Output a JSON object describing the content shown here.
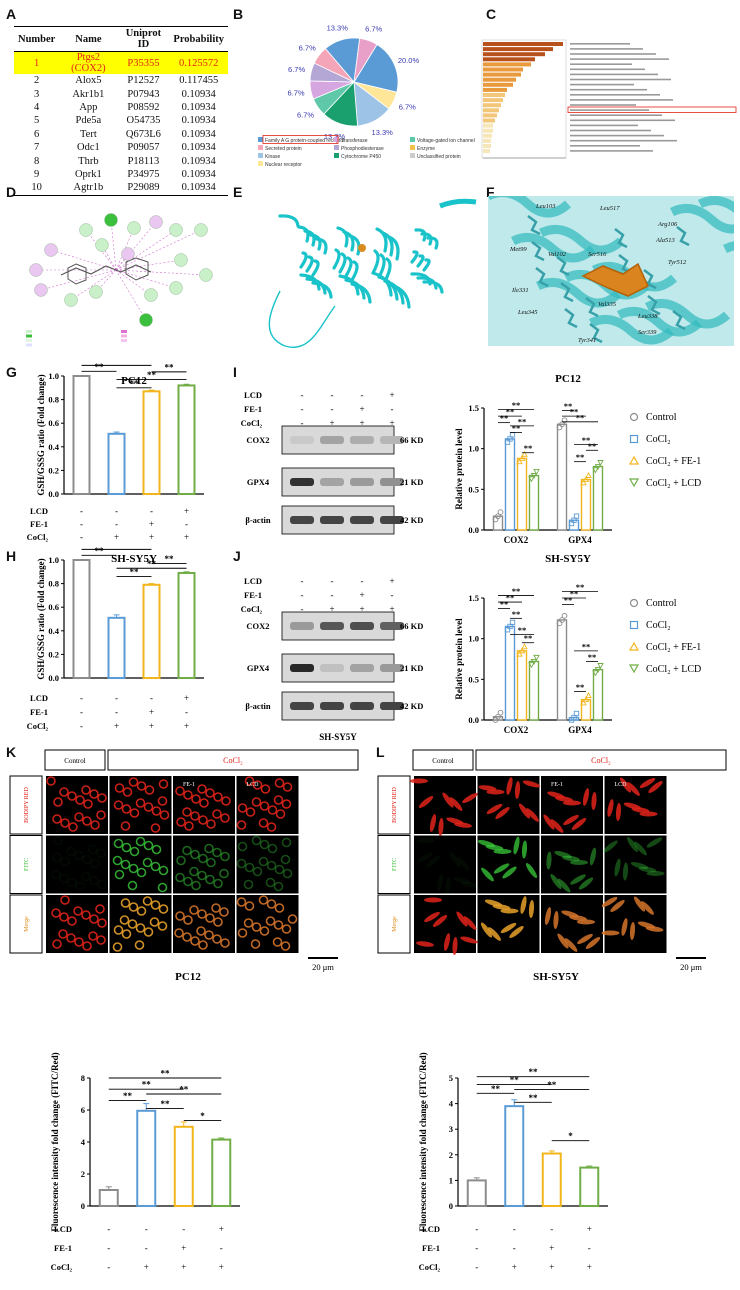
{
  "panels": {
    "A": "A",
    "B": "B",
    "C": "C",
    "D": "D",
    "E": "E",
    "F": "F",
    "G": "G",
    "H": "H",
    "I": "I",
    "J": "J",
    "K": "K",
    "L": "L"
  },
  "table_A": {
    "headers": [
      "Number",
      "Name",
      "Uniprot ID",
      "Probability"
    ],
    "rows": [
      [
        "1",
        "Ptgs2 (COX2)",
        "P35355",
        "0.125572"
      ],
      [
        "2",
        "Alox5",
        "P12527",
        "0.117455"
      ],
      [
        "3",
        "Akr1b1",
        "P07943",
        "0.10934"
      ],
      [
        "4",
        "App",
        "P08592",
        "0.10934"
      ],
      [
        "5",
        "Pde5a",
        "O54735",
        "0.10934"
      ],
      [
        "6",
        "Tert",
        "Q673L6",
        "0.10934"
      ],
      [
        "7",
        "Odc1",
        "P09057",
        "0.10934"
      ],
      [
        "8",
        "Thrb",
        "P18113",
        "0.10934"
      ],
      [
        "9",
        "Oprk1",
        "P34975",
        "0.10934"
      ],
      [
        "10",
        "Agtr1b",
        "P29089",
        "0.10934"
      ]
    ]
  },
  "colors": {
    "control": "#8c8c8c",
    "cocl2": "#5b9bd5",
    "fe1": "#f2b51c",
    "lcd": "#70ad47",
    "highlight": "#ffff00",
    "red": "#e2231a",
    "cyan": "#19c3c9"
  },
  "pie_B": {
    "slices": [
      {
        "pct": "20.0%",
        "value": 20.0,
        "color": "#5b9bd5"
      },
      {
        "pct": "6.7%",
        "value": 6.7,
        "color": "#ffe699"
      },
      {
        "pct": "13.3%",
        "value": 13.3,
        "color": "#9dc3e6"
      },
      {
        "pct": "13.3%",
        "value": 13.3,
        "color": "#1a9f6e"
      },
      {
        "pct": "6.7%",
        "value": 6.7,
        "color": "#5fc8a8"
      },
      {
        "pct": "6.7%",
        "value": 6.7,
        "color": "#d6a6e0"
      },
      {
        "pct": "6.7%",
        "value": 6.7,
        "color": "#b4a7d6"
      },
      {
        "pct": "6.7%",
        "value": 6.7,
        "color": "#f4a6b8"
      },
      {
        "pct": "13.3%",
        "value": 13.3,
        "color": "#5b9bd5"
      },
      {
        "pct": "6.7%",
        "value": 6.7,
        "color": "#e8a0c8"
      }
    ],
    "legend": [
      "Family A G protein-coupled receptor",
      "Transferase",
      "Voltage-gated ion channel",
      "Secreted protein",
      "Phosphodiesterase",
      "Enzyme",
      "Kinase",
      "Cytochrome P450",
      "Unclassified protein",
      "Nuclear receptor"
    ]
  },
  "labels": {
    "pc12": "PC12",
    "shsy5y": "SH-SY5Y",
    "lcd": "LCD",
    "fe1": "FE-1",
    "cocl2": "CoCl₂",
    "gsh_ylabel": "GSH/GSSG ratio (Fold change)",
    "rel_ylabel": "Relative protein level",
    "fluor_ylabel": "Fluorescence intensity fold change (FITC/Red)",
    "cox2": "COX2",
    "gpx4": "GPX4",
    "bactin": "β-actin",
    "kd66": "66 KD",
    "kd21": "21 KD",
    "kd42": "42 KD",
    "control": "Control",
    "cocl2_fe1": "CoCl₂ + FE-1",
    "cocl2_lcd": "CoCl₂ + LCD",
    "bodipy": "BODIPY RED",
    "fitc": "FITC",
    "merge": "Merge",
    "scale": "20 μm",
    "sig2": "**",
    "sig1": "*",
    "plus": "+",
    "minus": "-"
  },
  "chart_data": [
    {
      "type": "bar",
      "title": "PC12",
      "ylabel": "GSH/GSSG ratio (Fold change)",
      "categories": [
        "Control",
        "CoCl2",
        "CoCl2+FE-1",
        "CoCl2+LCD"
      ],
      "values": [
        1.0,
        0.51,
        0.87,
        0.92
      ],
      "ylim": [
        0,
        1.0
      ]
    },
    {
      "type": "bar",
      "title": "SH-SY5Y",
      "ylabel": "GSH/GSSG ratio (Fold change)",
      "categories": [
        "Control",
        "CoCl2",
        "CoCl2+FE-1",
        "CoCl2+LCD"
      ],
      "values": [
        1.0,
        0.51,
        0.79,
        0.89
      ],
      "ylim": [
        0,
        1.0
      ]
    },
    {
      "type": "scatter",
      "title": "PC12",
      "ylabel": "Relative protein level",
      "categories": [
        "COX2",
        "GPX4"
      ],
      "series": [
        {
          "name": "Control",
          "values": [
            0.17,
            1.3
          ]
        },
        {
          "name": "CoCl2",
          "values": [
            1.12,
            0.12
          ]
        },
        {
          "name": "CoCl2 + FE-1",
          "values": [
            0.88,
            0.62
          ]
        },
        {
          "name": "CoCl2 + LCD",
          "values": [
            0.67,
            0.78
          ]
        }
      ],
      "ylim": [
        0,
        1.5
      ]
    },
    {
      "type": "scatter",
      "title": "SH-SY5Y",
      "ylabel": "Relative protein level",
      "categories": [
        "COX2",
        "GPX4"
      ],
      "series": [
        {
          "name": "Control",
          "values": [
            0.04,
            1.23
          ]
        },
        {
          "name": "CoCl2",
          "values": [
            1.15,
            0.03
          ]
        },
        {
          "name": "CoCl2 + FE-1",
          "values": [
            0.85,
            0.25
          ]
        },
        {
          "name": "CoCl2 + LCD",
          "values": [
            0.72,
            0.62
          ]
        }
      ],
      "ylim": [
        0,
        1.5
      ]
    },
    {
      "type": "bar",
      "title": "PC12",
      "ylabel": "Fluorescence intensity fold change (FITC/Red)",
      "categories": [
        "Control",
        "CoCl2",
        "CoCl2+FE-1",
        "CoCl2+LCD"
      ],
      "values": [
        1.0,
        5.95,
        4.95,
        4.15
      ],
      "ylim": [
        0,
        8
      ]
    },
    {
      "type": "bar",
      "title": "SH-SY5Y",
      "ylabel": "Fluorescence intensity fold change (FITC/Red)",
      "categories": [
        "Control",
        "CoCl2",
        "CoCl2+FE-1",
        "CoCl2+LCD"
      ],
      "values": [
        1.0,
        3.9,
        2.05,
        1.5
      ],
      "ylim": [
        0,
        5
      ]
    }
  ]
}
